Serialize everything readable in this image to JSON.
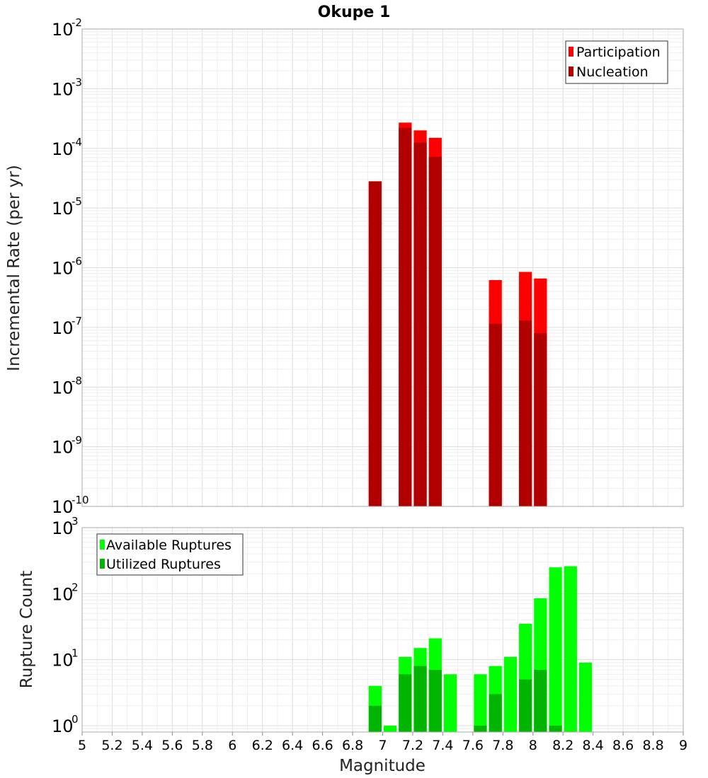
{
  "chart_data": [
    {
      "type": "bar",
      "title": "Okupe 1",
      "xlabel": "",
      "ylabel": "Incremental Rate (per yr)",
      "yscale": "log",
      "xlim": [
        5,
        9
      ],
      "ylim": [
        1e-10,
        0.01
      ],
      "ytick_exponents": [
        -10,
        -9,
        -8,
        -7,
        -6,
        -5,
        -4,
        -3,
        -2
      ],
      "grid": true,
      "legend_position": "top-right",
      "series": [
        {
          "name": "Participation",
          "color": "#ff0000",
          "x": [
            6.95,
            7.15,
            7.25,
            7.35,
            7.75,
            7.95,
            8.05
          ],
          "values": [
            2.8e-05,
            0.00027,
            0.0002,
            0.00015,
            6.2e-07,
            8.5e-07,
            6.6e-07
          ]
        },
        {
          "name": "Nucleation",
          "color": "#b00000",
          "x": [
            6.95,
            7.15,
            7.25,
            7.35,
            7.75,
            7.95,
            8.05
          ],
          "values": [
            2.8e-05,
            0.00022,
            0.000125,
            7.2e-05,
            1.15e-07,
            1.3e-07,
            8e-08
          ]
        }
      ]
    },
    {
      "type": "bar",
      "title": "",
      "xlabel": "Magnitude",
      "ylabel": "Rupture Count",
      "yscale": "log",
      "xlim": [
        5,
        9
      ],
      "ylim": [
        0.8,
        1000
      ],
      "ytick_exponents": [
        0,
        1,
        2,
        3
      ],
      "xticks": [
        "5",
        "5.2",
        "5.4",
        "5.6",
        "5.8",
        "6",
        "6.2",
        "6.4",
        "6.6",
        "6.8",
        "7",
        "7.2",
        "7.4",
        "7.6",
        "7.8",
        "8",
        "8.2",
        "8.4",
        "8.6",
        "8.8",
        "9"
      ],
      "grid": true,
      "legend_position": "top-left",
      "series": [
        {
          "name": "Available Ruptures",
          "color": "#00ff00",
          "x": [
            6.95,
            7.05,
            7.15,
            7.25,
            7.35,
            7.45,
            7.65,
            7.75,
            7.85,
            7.95,
            8.05,
            8.15,
            8.25,
            8.35
          ],
          "values": [
            4,
            1,
            11,
            15,
            21,
            6,
            6,
            8,
            11,
            35,
            85,
            250,
            260,
            9
          ]
        },
        {
          "name": "Utilized Ruptures",
          "color": "#00b400",
          "x": [
            6.95,
            7.15,
            7.25,
            7.35,
            7.65,
            7.75,
            7.95,
            8.05,
            8.15
          ],
          "values": [
            2,
            6,
            8,
            7,
            1,
            3,
            5,
            7,
            1
          ]
        }
      ]
    }
  ]
}
